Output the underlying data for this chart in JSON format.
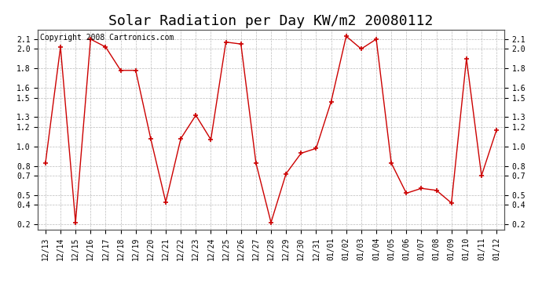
{
  "title": "Solar Radiation per Day KW/m2 20080112",
  "copyright_text": "Copyright 2008 Cartronics.com",
  "dates": [
    "12/13",
    "12/14",
    "12/15",
    "12/16",
    "12/17",
    "12/18",
    "12/19",
    "12/20",
    "12/21",
    "12/22",
    "12/23",
    "12/24",
    "12/25",
    "12/26",
    "12/27",
    "12/28",
    "12/29",
    "12/30",
    "12/31",
    "01/01",
    "01/02",
    "01/03",
    "01/04",
    "01/05",
    "01/06",
    "01/07",
    "01/08",
    "01/09",
    "01/10",
    "01/11",
    "01/12"
  ],
  "values": [
    0.83,
    2.02,
    0.22,
    2.1,
    2.02,
    1.78,
    1.78,
    1.08,
    0.43,
    1.08,
    1.32,
    1.07,
    2.07,
    2.05,
    0.83,
    0.22,
    0.72,
    0.93,
    0.98,
    1.46,
    2.13,
    2.0,
    2.1,
    0.83,
    0.52,
    0.57,
    0.55,
    0.42,
    1.9,
    0.7,
    1.17
  ],
  "line_color": "#cc0000",
  "marker_color": "#cc0000",
  "bg_color": "#ffffff",
  "plot_bg_color": "#ffffff",
  "grid_color": "#bbbbbb",
  "ylim": [
    0.15,
    2.2
  ],
  "yticks": [
    0.2,
    0.4,
    0.5,
    0.7,
    0.8,
    1.0,
    1.2,
    1.3,
    1.5,
    1.6,
    1.8,
    2.0,
    2.1
  ],
  "title_fontsize": 13,
  "tick_fontsize": 7,
  "copyright_fontsize": 7
}
